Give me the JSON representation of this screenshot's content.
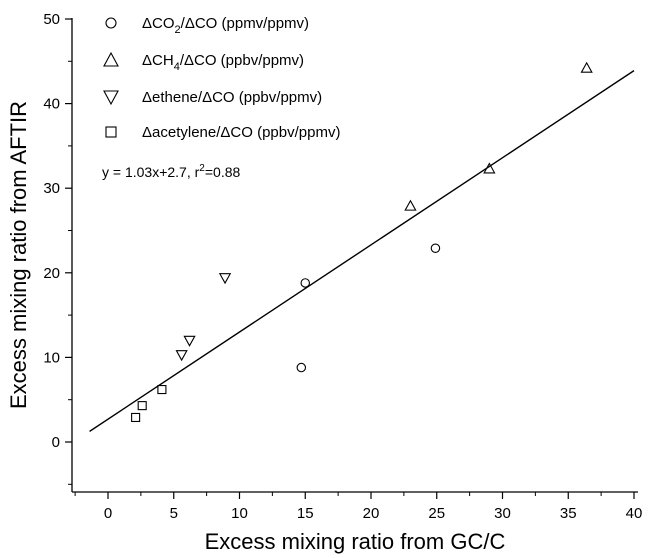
{
  "chart_data": {
    "type": "scatter",
    "xlabel": "Excess mixing ratio from GC/C",
    "ylabel": "Excess mixing ratio from AFTIR",
    "xlim": [
      -2,
      40
    ],
    "ylim": [
      -6,
      50
    ],
    "x_ticks": [
      0,
      5,
      10,
      15,
      20,
      25,
      30,
      35,
      40
    ],
    "y_ticks": [
      0,
      10,
      20,
      30,
      40,
      50
    ],
    "grid": false,
    "legend_position": "top-left",
    "series": [
      {
        "legend_main": "ΔCO",
        "legend_sub": "2",
        "legend_rest": "/ΔCO (ppmv/ppmv)",
        "marker": "circle",
        "points": [
          [
            14.7,
            8.8
          ],
          [
            15.0,
            18.8
          ],
          [
            24.9,
            22.9
          ]
        ]
      },
      {
        "legend_main": "ΔCH",
        "legend_sub": "4",
        "legend_rest": "/ΔCO (ppbv/ppmv)",
        "marker": "triangle-up",
        "points": [
          [
            23.0,
            27.9
          ],
          [
            29.0,
            32.3
          ],
          [
            36.4,
            44.2
          ]
        ]
      },
      {
        "legend_main": "Δethene/ΔCO (ppbv/ppmv)",
        "legend_sub": "",
        "legend_rest": "",
        "marker": "triangle-down",
        "points": [
          [
            5.6,
            10.3
          ],
          [
            6.2,
            12.0
          ],
          [
            8.9,
            19.4
          ]
        ]
      },
      {
        "legend_main": "Δacetylene/ΔCO (ppbv/ppmv)",
        "legend_sub": "",
        "legend_rest": "",
        "marker": "square",
        "points": [
          [
            2.1,
            2.9
          ],
          [
            2.6,
            4.3
          ],
          [
            4.1,
            6.2
          ]
        ]
      }
    ],
    "fit_line": {
      "slope": 1.03,
      "intercept": 2.7,
      "x_range": [
        -1.4,
        40
      ]
    },
    "annotation": {
      "prefix": "y = 1.03x+2.7, r",
      "sup": "2",
      "suffix": "=0.88"
    }
  }
}
